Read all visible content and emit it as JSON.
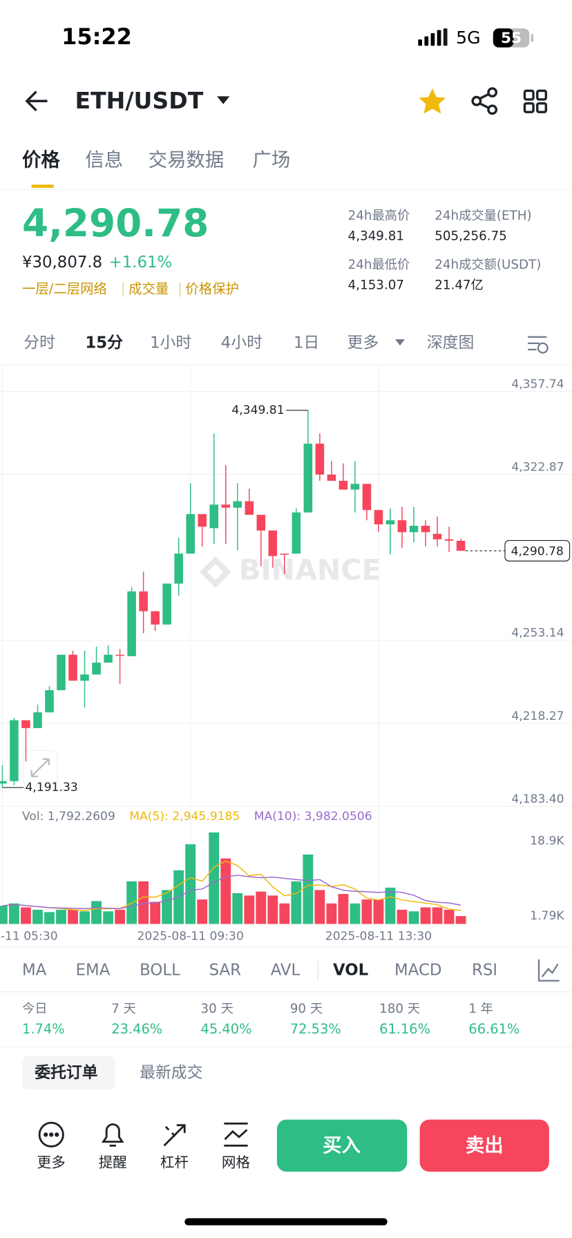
{
  "status": {
    "time": "15:22",
    "network": "5G",
    "battery": "55"
  },
  "header": {
    "pair": "ETH/USDT"
  },
  "tabs": [
    "价格",
    "信息",
    "交易数据",
    "广场"
  ],
  "price": {
    "last": "4,290.78",
    "cny": "¥30,807.8",
    "change": "+1.61%",
    "tags": [
      "一层/二层网络",
      "成交量",
      "价格保护"
    ]
  },
  "stats": [
    {
      "label": "24h最高价",
      "value": "4,349.81"
    },
    {
      "label": "24h成交量(ETH)",
      "value": "505,256.75"
    },
    {
      "label": "24h最低价",
      "value": "4,153.07"
    },
    {
      "label": "24h成交额(USDT)",
      "value": "21.47亿"
    }
  ],
  "intervals": [
    "分时",
    "15分",
    "1小时",
    "4小时",
    "1日",
    "更多",
    "深度图"
  ],
  "chart_data": {
    "type": "candlestick",
    "watermark": "BINANCE",
    "up_color": "#2ebd85",
    "down_color": "#f6465d",
    "ylim": [
      4183.4,
      4368.7
    ],
    "yticks": [
      {
        "value": 4357.74,
        "label": "4,357.74"
      },
      {
        "value": 4322.87,
        "label": "4,322.87"
      },
      {
        "value": 4253.14,
        "label": "4,253.14"
      },
      {
        "value": 4218.27,
        "label": "4,218.27"
      },
      {
        "value": 4183.4,
        "label": "4,183.40"
      }
    ],
    "open": [
      4193.0,
      4194.0,
      4219.6,
      4216.3,
      4222.9,
      4232.2,
      4247.1,
      4236.2,
      4238.8,
      4243.8,
      4247.1,
      4246.5,
      4273.7,
      4265.4,
      4259.8,
      4277.0,
      4289.6,
      4306.2,
      4300.3,
      4310.2,
      4308.9,
      4311.6,
      4305.9,
      4299.3,
      4289.6,
      4289.6,
      4306.9,
      4335.8,
      4322.8,
      4320.2,
      4316.5,
      4318.9,
      4307.9,
      4301.9,
      4303.6,
      4298.6,
      4301.3,
      4297.9,
      4295.6,
      4295.0
    ],
    "high": [
      4200.7,
      4220.6,
      4219.6,
      4226.2,
      4233.9,
      4247.1,
      4248.8,
      4248.8,
      4250.5,
      4251.1,
      4249.5,
      4275.4,
      4282.0,
      4265.4,
      4277.0,
      4296.3,
      4319.2,
      4306.2,
      4340.1,
      4326.8,
      4319.2,
      4316.9,
      4305.9,
      4299.3,
      4289.6,
      4308.6,
      4349.81,
      4340.1,
      4328.5,
      4327.5,
      4328.5,
      4318.9,
      4307.9,
      4308.6,
      4309.2,
      4309.2,
      4303.6,
      4305.2,
      4300.9,
      4295.9
    ],
    "low": [
      4191.33,
      4192.4,
      4202.3,
      4216.3,
      4222.9,
      4232.2,
      4236.2,
      4224.9,
      4238.8,
      4243.8,
      4234.9,
      4246.5,
      4256.1,
      4257.1,
      4259.8,
      4272.0,
      4289.6,
      4292.6,
      4293.6,
      4293.6,
      4291.0,
      4305.9,
      4284.3,
      4283.7,
      4281.0,
      4289.6,
      4306.9,
      4320.2,
      4320.2,
      4316.5,
      4306.9,
      4303.6,
      4298.6,
      4289.3,
      4292.0,
      4294.3,
      4292.6,
      4292.6,
      4290.3,
      4290.78
    ],
    "close": [
      4194.0,
      4219.6,
      4216.3,
      4222.9,
      4232.2,
      4247.1,
      4236.2,
      4238.8,
      4243.8,
      4247.1,
      4246.8,
      4273.7,
      4265.4,
      4259.8,
      4277.0,
      4289.6,
      4306.2,
      4300.9,
      4310.2,
      4308.9,
      4311.6,
      4305.9,
      4299.3,
      4288.6,
      4289.3,
      4306.9,
      4335.8,
      4322.8,
      4320.2,
      4316.5,
      4318.9,
      4307.9,
      4301.9,
      4303.6,
      4298.6,
      4301.3,
      4298.6,
      4295.6,
      4295.0,
      4290.78
    ],
    "high_label": "4,349.81",
    "low_label": "4,191.33",
    "current_label": "4,290.78",
    "volume": [
      4140,
      4680,
      3780,
      3240,
      2700,
      3240,
      3240,
      2880,
      5220,
      2880,
      3240,
      9720,
      9720,
      5040,
      7740,
      12240,
      18180,
      5580,
      20880,
      14940,
      7020,
      6480,
      7380,
      6480,
      4680,
      9720,
      15840,
      7740,
      4680,
      6840,
      4680,
      5580,
      5580,
      8280,
      3240,
      2880,
      3780,
      3780,
      3240,
      1792.2609
    ],
    "vol_ylim": [
      0,
      22140
    ],
    "vol_ticks": [
      {
        "value": 18900,
        "label": "18.9K"
      },
      {
        "value": 1790,
        "label": "1.79K"
      }
    ],
    "vol_legend": [
      "Vol: 1,792.2609",
      "MA(5): 2,945.9185",
      "MA(10): 3,982.0506"
    ],
    "ma_colors": [
      "#f0b90b",
      "#9b6bd0"
    ],
    "x_labels": [
      "-11 05:30",
      "2025-08-11 09:30",
      "2025-08-11 13:30"
    ]
  },
  "indicators": [
    "MA",
    "EMA",
    "BOLL",
    "SAR",
    "AVL",
    "VOL",
    "MACD",
    "RSI"
  ],
  "performance": [
    {
      "label": "今日",
      "value": "1.74%"
    },
    {
      "label": "7 天",
      "value": "23.46%"
    },
    {
      "label": "30 天",
      "value": "45.40%"
    },
    {
      "label": "90 天",
      "value": "72.53%"
    },
    {
      "label": "180 天",
      "value": "61.16%"
    },
    {
      "label": "1 年",
      "value": "66.61%"
    }
  ],
  "order_tabs": [
    "委托订单",
    "最新成交"
  ],
  "actions": [
    "更多",
    "提醒",
    "杠杆",
    "网格"
  ],
  "buy": "买入",
  "sell": "卖出"
}
